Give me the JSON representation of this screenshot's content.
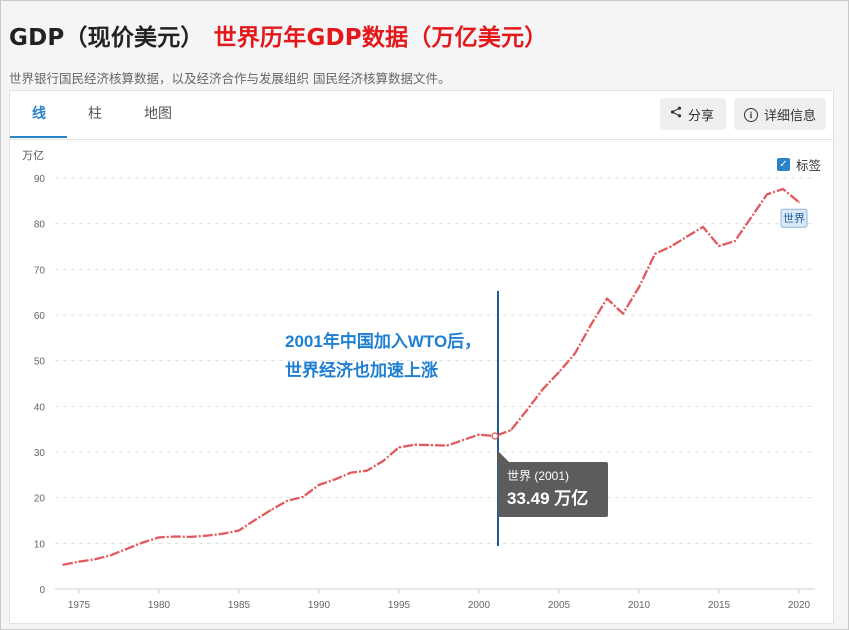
{
  "header": {
    "title": "GDP（现价美元）",
    "headline": "世界历年GDP数据（万亿美元）",
    "subtitle": "世界银行国民经济核算数据，以及经济合作与发展组织 国民经济核算数据文件。"
  },
  "tabs": [
    {
      "label": "线",
      "active": true
    },
    {
      "label": "柱",
      "active": false
    },
    {
      "label": "地图",
      "active": false
    }
  ],
  "actions": {
    "share_label": "分享",
    "details_label": "详细信息"
  },
  "labels_toggle": {
    "label": "标签",
    "checked": true
  },
  "colors": {
    "accent": "#2a83c7",
    "line": "#e05a5e",
    "annotation": "#1f7fd1",
    "headline": "#e4181b"
  },
  "chart_data": {
    "type": "line",
    "ylabel": "万亿",
    "ylim": [
      0,
      90
    ],
    "xlim": [
      1973.5,
      2021
    ],
    "y_ticks": [
      "0",
      "10",
      "20",
      "30",
      "40",
      "50",
      "60",
      "70",
      "80",
      "90"
    ],
    "x_ticks": [
      "1975",
      "1980",
      "1985",
      "1990",
      "1995",
      "2000",
      "2005",
      "2010",
      "2015",
      "2020"
    ],
    "grid": true,
    "series": [
      {
        "name": "世界",
        "color": "#e05a5e",
        "x": [
          1974,
          1975,
          1976,
          1977,
          1978,
          1979,
          1980,
          1981,
          1982,
          1983,
          1984,
          1985,
          1986,
          1987,
          1988,
          1989,
          1990,
          1991,
          1992,
          1993,
          1994,
          1995,
          1996,
          1997,
          1998,
          1999,
          2000,
          2001,
          2002,
          2003,
          2004,
          2005,
          2006,
          2007,
          2008,
          2009,
          2010,
          2011,
          2012,
          2013,
          2014,
          2015,
          2016,
          2017,
          2018,
          2019,
          2020
        ],
        "values": [
          5.3,
          6.0,
          6.5,
          7.4,
          8.8,
          10.2,
          11.3,
          11.5,
          11.4,
          11.7,
          12.1,
          12.8,
          15.1,
          17.3,
          19.3,
          20.2,
          22.8,
          24.0,
          25.5,
          25.9,
          28.0,
          31.0,
          31.6,
          31.5,
          31.4,
          32.6,
          33.8,
          33.49,
          34.8,
          39.2,
          43.8,
          47.5,
          51.6,
          57.9,
          63.6,
          60.3,
          66.1,
          73.4,
          75.0,
          77.2,
          79.3,
          75.1,
          76.2,
          81.3,
          86.4,
          87.6,
          84.7
        ]
      }
    ],
    "end_label": "世界",
    "tooltip": {
      "title": "世界 (2001)",
      "value": "33.49 万亿",
      "x": 2001,
      "y": 33.49
    },
    "annotation": {
      "lines": [
        "2001年中国加入WTO后，",
        "世界经济也加速上涨"
      ],
      "x": 2001
    }
  }
}
